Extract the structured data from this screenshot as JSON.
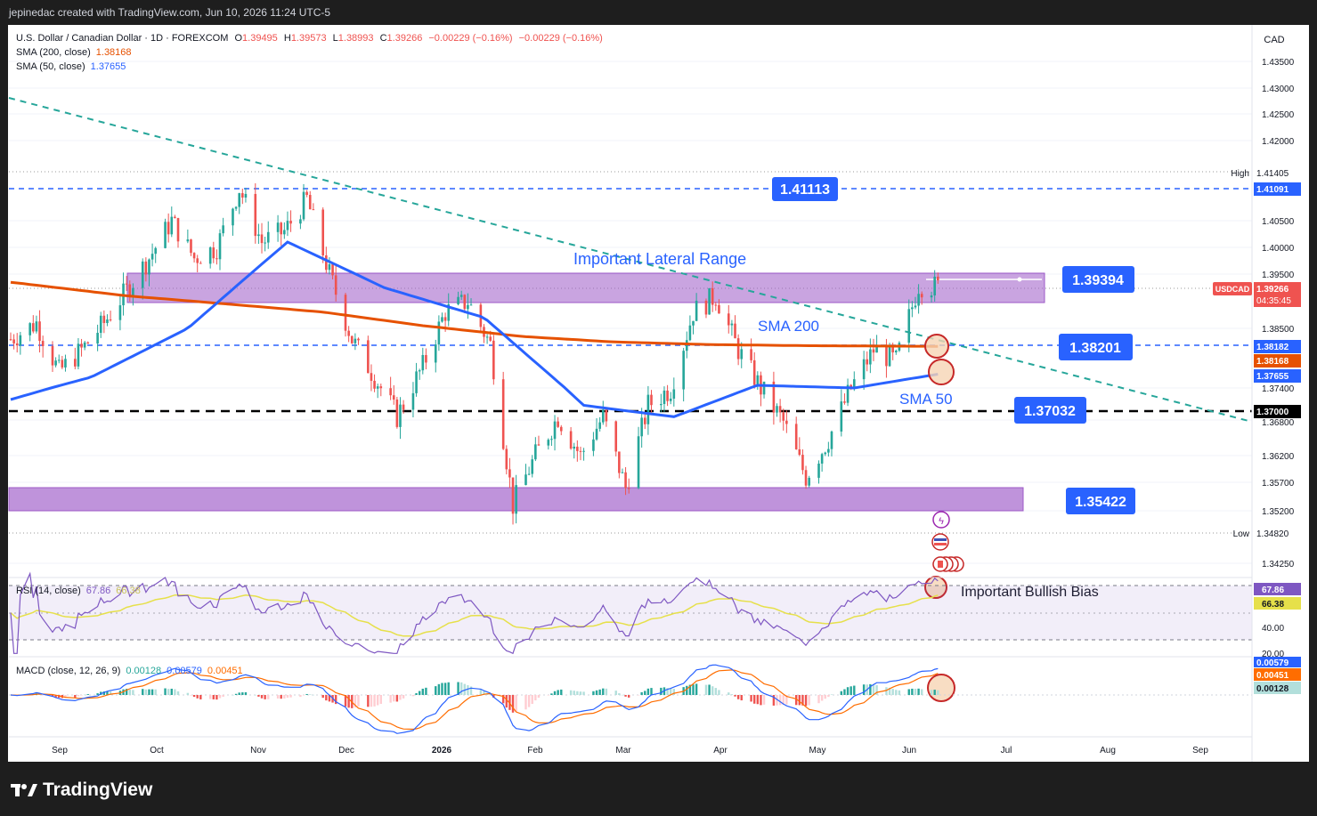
{
  "header": {
    "credit": "jepinedac created with TradingView.com, Jun 10, 2026 11:24 UTC-5"
  },
  "legend": {
    "symbol": "U.S. Dollar / Canadian Dollar · 1D · FOREXCOM",
    "O": "1.39495",
    "H": "1.39573",
    "L": "1.38993",
    "C": "1.39266",
    "change": "−0.00229 (−0.16%)",
    "change2": "−0.00229 (−0.16%)",
    "sma200_label": "SMA (200, close)",
    "sma200_value": "1.38168",
    "sma50_label": "SMA (50, close)",
    "sma50_value": "1.37655"
  },
  "price_axis": {
    "currency": "CAD",
    "ticks": [
      "1.43500",
      "1.43000",
      "1.42500",
      "1.42000",
      "1.40500",
      "1.40000",
      "1.39500",
      "1.38500",
      "1.37400",
      "1.36800",
      "1.36200",
      "1.35700",
      "1.35200",
      "1.34250"
    ],
    "high_label": "High",
    "high_value": "1.41405",
    "low_label": "Low",
    "low_value": "1.34820",
    "tag_1_41091": "1.41091",
    "tag_usdcad": "USDCAD",
    "tag_price": "1.39266",
    "tag_time": "04:35:45",
    "tag_1_38182": "1.38182",
    "tag_sma200": "1.38168",
    "tag_sma50": "1.37655",
    "tag_1_37000": "1.37000"
  },
  "annotations": {
    "level_top": "1.41113",
    "level_range": "1.39394",
    "level_mid": "1.38201",
    "level_support": "1.37032",
    "level_bottom": "1.35422",
    "range_label": "Important Lateral Range",
    "sma200_label": "SMA 200",
    "sma50_label": "SMA 50",
    "bullish_label": "Important Bullish Bias"
  },
  "rsi": {
    "label": "RSI (14, close)",
    "v1": "67.86",
    "v2": "66.38",
    "ticks": [
      "40.00",
      "20.00"
    ],
    "tag1": "67.86",
    "tag2": "66.38"
  },
  "macd": {
    "label": "MACD (close, 12, 26, 9)",
    "v1": "0.00128",
    "v2": "0.00579",
    "v3": "0.00451",
    "tag1": "0.00579",
    "tag2": "0.00451",
    "tag3": "0.00128"
  },
  "time_axis": [
    "Sep",
    "Oct",
    "Nov",
    "Dec",
    "2026",
    "Feb",
    "Mar",
    "Apr",
    "May",
    "Jun",
    "Jul",
    "Aug",
    "Sep"
  ],
  "footer": {
    "brand": "TradingView"
  },
  "colors": {
    "up": "#26a69a",
    "down": "#ef5350",
    "sma200": "#e65100",
    "sma50": "#2962ff",
    "zone": "#9c59c7",
    "label_bg": "#2962ff"
  },
  "chart_data": {
    "type": "candlestick",
    "title": "U.S. Dollar / Canadian Dollar · 1D · FOREXCOM",
    "ylim": [
      1.3425,
      1.4375
    ],
    "x_range": [
      "2025-08-26",
      "2026-09-15"
    ],
    "horizontal_levels": [
      1.41113,
      1.39394,
      1.38201,
      1.37032,
      1.35422
    ],
    "zones": [
      {
        "from": 1.39,
        "to": 1.3955
      },
      {
        "from": 1.352,
        "to": 1.3562
      }
    ],
    "close_path": [
      {
        "date": "2025-08-26",
        "close": 1.383
      },
      {
        "date": "2025-09-03",
        "close": 1.386
      },
      {
        "date": "2025-09-10",
        "close": 1.377
      },
      {
        "date": "2025-09-17",
        "close": 1.381
      },
      {
        "date": "2025-09-24",
        "close": 1.386
      },
      {
        "date": "2025-10-01",
        "close": 1.392
      },
      {
        "date": "2025-10-08",
        "close": 1.398
      },
      {
        "date": "2025-10-15",
        "close": 1.405
      },
      {
        "date": "2025-10-22",
        "close": 1.398
      },
      {
        "date": "2025-10-29",
        "close": 1.4
      },
      {
        "date": "2025-11-05",
        "close": 1.411
      },
      {
        "date": "2025-11-12",
        "close": 1.401
      },
      {
        "date": "2025-11-19",
        "close": 1.403
      },
      {
        "date": "2025-11-26",
        "close": 1.409
      },
      {
        "date": "2025-12-03",
        "close": 1.395
      },
      {
        "date": "2025-12-10",
        "close": 1.383
      },
      {
        "date": "2025-12-17",
        "close": 1.376
      },
      {
        "date": "2025-12-24",
        "close": 1.369
      },
      {
        "date": "2026-01-01",
        "close": 1.378
      },
      {
        "date": "2026-01-08",
        "close": 1.388
      },
      {
        "date": "2026-01-15",
        "close": 1.39
      },
      {
        "date": "2026-01-22",
        "close": 1.382
      },
      {
        "date": "2026-01-29",
        "close": 1.353
      },
      {
        "date": "2026-02-05",
        "close": 1.362
      },
      {
        "date": "2026-02-12",
        "close": 1.369
      },
      {
        "date": "2026-02-19",
        "close": 1.362
      },
      {
        "date": "2026-02-26",
        "close": 1.369
      },
      {
        "date": "2026-03-05",
        "close": 1.356
      },
      {
        "date": "2026-03-12",
        "close": 1.371
      },
      {
        "date": "2026-03-19",
        "close": 1.374
      },
      {
        "date": "2026-03-26",
        "close": 1.388
      },
      {
        "date": "2026-04-02",
        "close": 1.391
      },
      {
        "date": "2026-04-09",
        "close": 1.381
      },
      {
        "date": "2026-04-16",
        "close": 1.374
      },
      {
        "date": "2026-04-23",
        "close": 1.368
      },
      {
        "date": "2026-04-30",
        "close": 1.358
      },
      {
        "date": "2026-05-07",
        "close": 1.365
      },
      {
        "date": "2026-05-14",
        "close": 1.374
      },
      {
        "date": "2026-05-21",
        "close": 1.381
      },
      {
        "date": "2026-05-28",
        "close": 1.379
      },
      {
        "date": "2026-06-04",
        "close": 1.393
      },
      {
        "date": "2026-06-10",
        "close": 1.39266
      }
    ],
    "sma200": [
      {
        "date": "2025-08-26",
        "value": 1.3935
      },
      {
        "date": "2025-10-01",
        "value": 1.391
      },
      {
        "date": "2025-11-01",
        "value": 1.3895
      },
      {
        "date": "2025-12-01",
        "value": 1.388
      },
      {
        "date": "2026-01-01",
        "value": 1.3855
      },
      {
        "date": "2026-02-01",
        "value": 1.3835
      },
      {
        "date": "2026-03-01",
        "value": 1.3825
      },
      {
        "date": "2026-04-01",
        "value": 1.382
      },
      {
        "date": "2026-05-01",
        "value": 1.3818
      },
      {
        "date": "2026-06-10",
        "value": 1.38168
      }
    ],
    "sma50": [
      {
        "date": "2025-08-26",
        "value": 1.372
      },
      {
        "date": "2025-09-20",
        "value": 1.376
      },
      {
        "date": "2025-10-20",
        "value": 1.385
      },
      {
        "date": "2025-11-20",
        "value": 1.401
      },
      {
        "date": "2025-12-20",
        "value": 1.3925
      },
      {
        "date": "2026-01-20",
        "value": 1.387
      },
      {
        "date": "2026-02-20",
        "value": 1.371
      },
      {
        "date": "2026-03-20",
        "value": 1.369
      },
      {
        "date": "2026-04-15",
        "value": 1.3745
      },
      {
        "date": "2026-05-15",
        "value": 1.374
      },
      {
        "date": "2026-06-10",
        "value": 1.37655
      }
    ],
    "rsi_last": 67.86,
    "rsi_ma_last": 66.38,
    "macd_last": 0.00579,
    "macd_signal_last": 0.00451,
    "macd_hist_last": 0.00128
  }
}
